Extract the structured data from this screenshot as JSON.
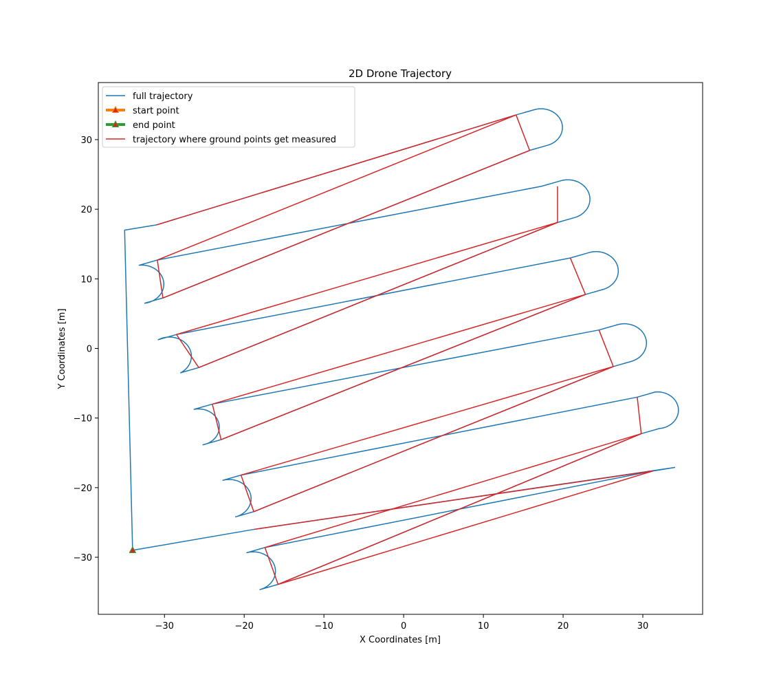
{
  "chart_data": {
    "type": "line",
    "title": "2D Drone Trajectory",
    "xlabel": "X Coordinates [m]",
    "ylabel": "Y Coordinates [m]",
    "xlim": [
      -38.3,
      37.5
    ],
    "ylim": [
      -38.2,
      38.2
    ],
    "xticks": [
      -30,
      -20,
      -10,
      0,
      10,
      20,
      30
    ],
    "yticks": [
      -30,
      -20,
      -10,
      0,
      10,
      20,
      30
    ],
    "tick_labels_x": [
      "−30",
      "−20",
      "−10",
      "0",
      "10",
      "20",
      "30"
    ],
    "tick_labels_y": [
      "−30",
      "−20",
      "−10",
      "0",
      "10",
      "20",
      "30"
    ],
    "grid": false,
    "legend_position": "upper-left",
    "colors": {
      "full": "#1f77b4",
      "start": "#ff7f0e",
      "end": "#2ca02c",
      "measured": "#d62728",
      "marker_fill": "#d62728"
    },
    "legend": [
      {
        "key": "full",
        "label": "full trajectory",
        "style": "line"
      },
      {
        "key": "start",
        "label": "start point",
        "style": "thick-marker"
      },
      {
        "key": "end",
        "label": "end point",
        "style": "thick-marker"
      },
      {
        "key": "measured",
        "label": "trajectory where ground points get measured",
        "style": "line"
      }
    ],
    "pass_geometry": {
      "bottom_start": [
        -15.75,
        -33.9
      ],
      "direction_step": [
        31.6,
        10.35
      ],
      "row_step": [
        3.5,
        10.35
      ],
      "turn_radius": 3.1,
      "passes": 6
    },
    "series": [
      {
        "name": "full trajectory",
        "kind": "full",
        "waypoints": [
          [
            -34.0,
            -29.0
          ],
          [
            -35.0,
            17.0
          ],
          [
            -31.0,
            17.75
          ],
          [
            14.1,
            33.55
          ]
        ]
      },
      {
        "name": "start point",
        "kind": "marker",
        "points": [
          [
            -34.0,
            -29.0
          ]
        ]
      },
      {
        "name": "end point",
        "kind": "marker",
        "points": [
          [
            -34.0,
            -29.0
          ]
        ]
      },
      {
        "name": "trajectory where ground points get measured",
        "kind": "measured",
        "segments": [
          [
            [
              -31.0,
              17.75
            ],
            [
              14.1,
              33.55
            ]
          ],
          [
            [
              15.8,
              28.45
            ],
            [
              -30.2,
              7.25
            ]
          ],
          [
            [
              -30.9,
              12.7
            ],
            [
              14.1,
              33.55
            ]
          ],
          [
            [
              19.3,
              18.1
            ],
            [
              -25.7,
              -2.75
            ]
          ],
          [
            [
              -28.5,
              2.0
            ],
            [
              19.3,
              18.1
            ]
          ],
          [
            [
              22.8,
              7.75
            ],
            [
              -22.9,
              -13.1
            ]
          ],
          [
            [
              -24.0,
              -8.0
            ],
            [
              22.8,
              7.75
            ]
          ],
          [
            [
              26.3,
              -2.6
            ],
            [
              -18.8,
              -23.45
            ]
          ],
          [
            [
              -20.4,
              -18.2
            ],
            [
              26.3,
              -2.6
            ]
          ],
          [
            [
              29.8,
              -12.25
            ],
            [
              -15.75,
              -33.9
            ]
          ],
          [
            [
              -17.4,
              -28.6
            ],
            [
              29.8,
              -12.25
            ]
          ],
          [
            [
              31.3,
              -17.6
            ],
            [
              -18.8,
              -26.0
            ]
          ],
          [
            [
              31.3,
              -17.6
            ],
            [
              -15.75,
              -33.9
            ]
          ],
          [
            [
              -30.9,
              12.7
            ],
            [
              -30.2,
              7.25
            ]
          ],
          [
            [
              14.1,
              33.55
            ],
            [
              15.8,
              28.45
            ]
          ],
          [
            [
              -28.5,
              2.0
            ],
            [
              -25.7,
              -2.75
            ]
          ],
          [
            [
              19.3,
              23.3
            ],
            [
              19.3,
              18.1
            ]
          ],
          [
            [
              -24.0,
              -8.0
            ],
            [
              -22.9,
              -13.1
            ]
          ],
          [
            [
              20.9,
              13.0
            ],
            [
              22.8,
              7.75
            ]
          ],
          [
            [
              -20.4,
              -18.2
            ],
            [
              -18.8,
              -23.45
            ]
          ],
          [
            [
              24.5,
              2.65
            ],
            [
              26.3,
              -2.6
            ]
          ],
          [
            [
              -17.4,
              -28.6
            ],
            [
              -15.75,
              -33.9
            ]
          ],
          [
            [
              29.3,
              -7.0
            ],
            [
              29.8,
              -12.25
            ]
          ]
        ]
      }
    ],
    "closing_leg": [
      [
        31.3,
        -17.6
      ],
      [
        34.0,
        -17.1
      ],
      [
        -18.8,
        -26.0
      ],
      [
        -34.0,
        -29.0
      ]
    ]
  }
}
